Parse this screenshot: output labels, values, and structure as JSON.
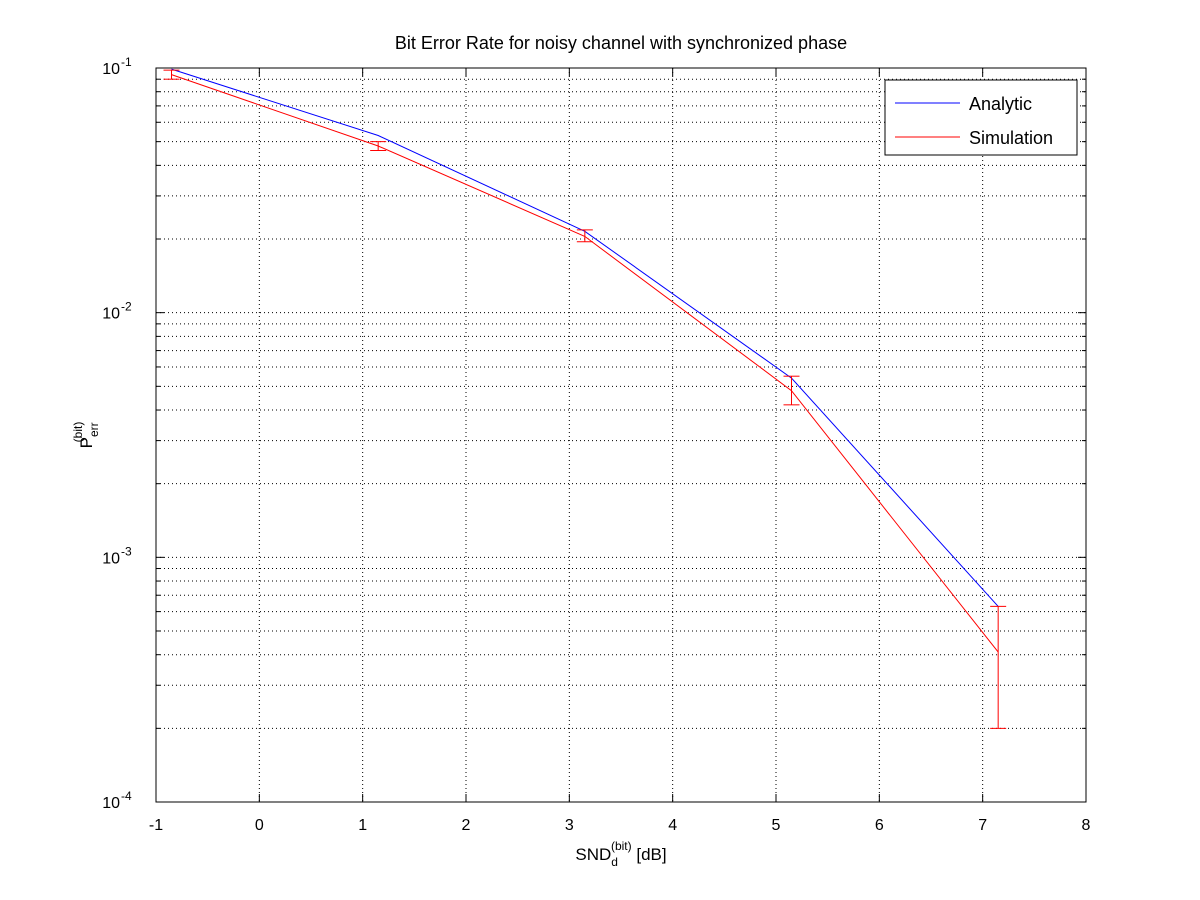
{
  "chart_data": {
    "type": "line",
    "title": "Bit Error Rate for noisy channel with synchronized phase",
    "xlabel": {
      "main": "SND",
      "sub": "d",
      "sup": "(bit)",
      "unit": " [dB]"
    },
    "ylabel": {
      "main": "P",
      "sub": "err",
      "sup": "(bit)"
    },
    "xlim": [
      -1,
      8
    ],
    "ylim": [
      0.0001,
      0.1
    ],
    "yscale": "log",
    "grid": true,
    "legend_position": "top-right",
    "x_ticks": [
      "-1",
      "0",
      "1",
      "2",
      "3",
      "4",
      "5",
      "6",
      "7",
      "8"
    ],
    "y_ticks": [
      {
        "base": "10",
        "exp": "-1"
      },
      {
        "base": "10",
        "exp": "-2"
      },
      {
        "base": "10",
        "exp": "-3"
      },
      {
        "base": "10",
        "exp": "-4"
      }
    ],
    "series": [
      {
        "name": "Analytic",
        "color": "#0000ff",
        "x": [
          -0.85,
          1.15,
          3.15,
          5.15,
          7.15
        ],
        "y": [
          0.099,
          0.053,
          0.0215,
          0.0054,
          0.00063
        ]
      },
      {
        "name": "Simulation",
        "color": "#ff0000",
        "x": [
          -0.85,
          1.15,
          3.15,
          5.15,
          7.15
        ],
        "y": [
          0.094,
          0.048,
          0.0205,
          0.0048,
          0.00041
        ],
        "err_low": [
          0.09,
          0.046,
          0.0195,
          0.0042,
          0.0002
        ],
        "err_high": [
          0.098,
          0.05,
          0.0218,
          0.0055,
          0.00063
        ]
      }
    ]
  }
}
